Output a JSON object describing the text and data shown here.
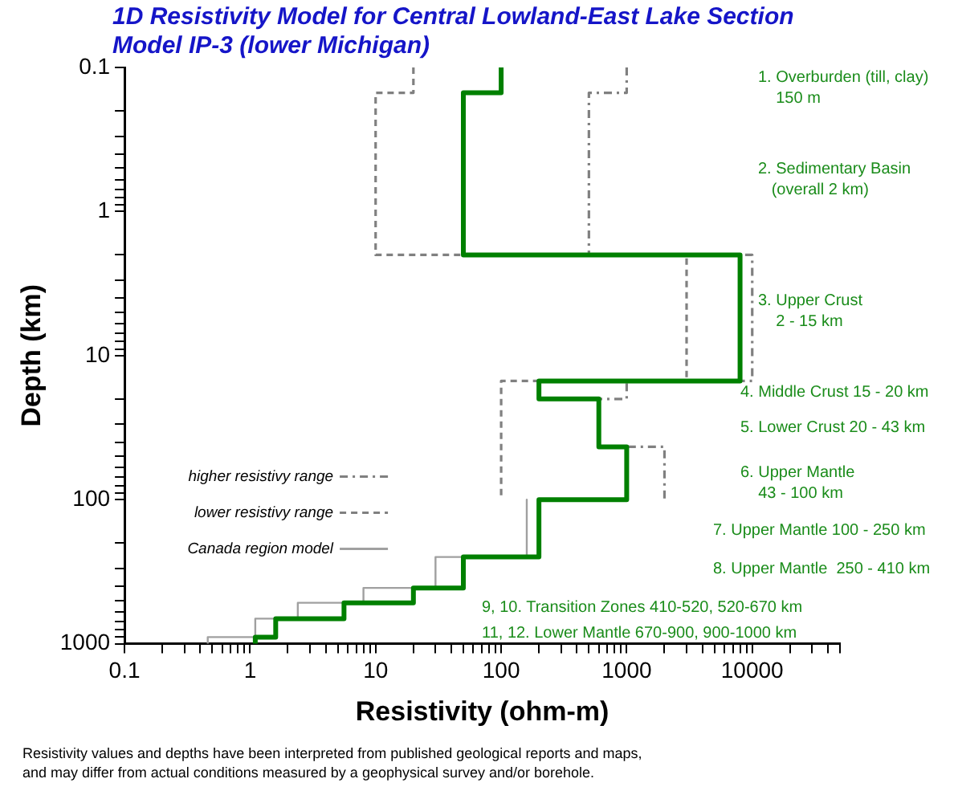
{
  "chart_data": {
    "type": "line",
    "title": "1D Resistivity Model for Central Lowland-East Lake Section",
    "subtitle": "Model IP-3 (lower Michigan)",
    "xlabel": "Resistivity (ohm-m)",
    "ylabel": "Depth (km)",
    "log": "xy",
    "xlim": [
      0.1,
      50000
    ],
    "ylim": [
      1000,
      0.1
    ],
    "xticks": [
      0.1,
      {
        "value": 0.2,
        "label": null
      },
      {
        "value": 0.3,
        "label": null
      },
      {
        "value": 0.4,
        "label": null
      },
      {
        "value": 0.5,
        "label": null
      },
      {
        "value": 0.6,
        "label": null
      },
      {
        "value": 0.7,
        "label": null
      },
      {
        "value": 0.8,
        "label": null
      },
      {
        "value": 0.9,
        "label": null
      },
      1,
      {
        "value": 2,
        "label": null
      },
      {
        "value": 3,
        "label": null
      },
      {
        "value": 4,
        "label": null
      },
      {
        "value": 5,
        "label": null
      },
      {
        "value": 6,
        "label": null
      },
      {
        "value": 7,
        "label": null
      },
      {
        "value": 8,
        "label": null
      },
      {
        "value": 9,
        "label": null
      },
      10,
      {
        "value": 20,
        "label": null
      },
      {
        "value": 30,
        "label": null
      },
      {
        "value": 40,
        "label": null
      },
      {
        "value": 50,
        "label": null
      },
      {
        "value": 60,
        "label": null
      },
      {
        "value": 70,
        "label": null
      },
      {
        "value": 80,
        "label": null
      },
      {
        "value": 90,
        "label": null
      },
      100,
      {
        "value": 200,
        "label": null
      },
      {
        "value": 300,
        "label": null
      },
      {
        "value": 400,
        "label": null
      },
      {
        "value": 500,
        "label": null
      },
      {
        "value": 600,
        "label": null
      },
      {
        "value": 700,
        "label": null
      },
      {
        "value": 800,
        "label": null
      },
      {
        "value": 900,
        "label": null
      },
      1000,
      {
        "value": 2000,
        "label": null
      },
      {
        "value": 3000,
        "label": null
      },
      {
        "value": 4000,
        "label": null
      },
      {
        "value": 5000,
        "label": null
      },
      {
        "value": 6000,
        "label": null
      },
      {
        "value": 7000,
        "label": null
      },
      {
        "value": 8000,
        "label": null
      },
      {
        "value": 9000,
        "label": null
      },
      10000,
      {
        "value": 20000,
        "label": null
      },
      {
        "value": 30000,
        "label": null
      },
      {
        "value": 40000,
        "label": null
      },
      {
        "value": 50000,
        "label": null
      }
    ],
    "yticks": [
      0.1,
      {
        "value": 0.2,
        "label": null
      },
      {
        "value": 0.3,
        "label": null
      },
      {
        "value": 0.4,
        "label": null
      },
      {
        "value": 0.5,
        "label": null
      },
      {
        "value": 0.6,
        "label": null
      },
      {
        "value": 0.7,
        "label": null
      },
      {
        "value": 0.8,
        "label": null
      },
      {
        "value": 0.9,
        "label": null
      },
      1,
      {
        "value": 2,
        "label": null
      },
      {
        "value": 3,
        "label": null
      },
      {
        "value": 4,
        "label": null
      },
      {
        "value": 5,
        "label": null
      },
      {
        "value": 6,
        "label": null
      },
      {
        "value": 7,
        "label": null
      },
      {
        "value": 8,
        "label": null
      },
      {
        "value": 9,
        "label": null
      },
      10,
      {
        "value": 20,
        "label": null
      },
      {
        "value": 30,
        "label": null
      },
      {
        "value": 40,
        "label": null
      },
      {
        "value": 50,
        "label": null
      },
      {
        "value": 60,
        "label": null
      },
      {
        "value": 70,
        "label": null
      },
      {
        "value": 80,
        "label": null
      },
      {
        "value": 90,
        "label": null
      },
      100,
      {
        "value": 200,
        "label": null
      },
      {
        "value": 300,
        "label": null
      },
      {
        "value": 400,
        "label": null
      },
      {
        "value": 500,
        "label": null
      },
      {
        "value": 600,
        "label": null
      },
      {
        "value": 700,
        "label": null
      },
      {
        "value": 800,
        "label": null
      },
      {
        "value": 900,
        "label": null
      },
      1000
    ],
    "grid": false,
    "legend": "left",
    "marker": "none",
    "series": [
      {
        "color": "#008000",
        "line_style": "solid",
        "x": [
          100,
          100,
          50,
          50,
          8000,
          8000,
          200,
          200,
          600,
          600,
          1000,
          1000,
          200,
          200,
          50,
          50,
          20,
          20,
          5.6,
          5.6,
          1.6,
          1.6,
          1.1,
          1.1
        ],
        "values": [
          0.1,
          0.15,
          0.15,
          2,
          2,
          15,
          15,
          20,
          20,
          43,
          43,
          100,
          100,
          250,
          250,
          410,
          410,
          520,
          520,
          670,
          670,
          900,
          900,
          1000
        ]
      },
      {
        "name": "higher resistivy range",
        "color": "#808080",
        "line_style": "dotted",
        "x": [
          1000,
          1000,
          500,
          500,
          10000,
          10000,
          1000,
          1000,
          600,
          600,
          2000,
          2000
        ],
        "values": [
          0.1,
          0.15,
          0.15,
          2,
          2,
          15,
          15,
          20,
          20,
          43,
          43,
          100
        ]
      },
      {
        "name": "lower resistivy range",
        "color": "#808080",
        "line_style": "dashed",
        "x": [
          20,
          20,
          10,
          10,
          3000,
          3000,
          100,
          100
        ],
        "values": [
          0.1,
          0.15,
          0.15,
          2,
          2,
          15,
          15,
          100
        ]
      },
      {
        "name": "Canada region model",
        "color": "#a0a0a0",
        "line_style": "solid",
        "x": [
          160,
          160,
          30,
          30,
          8,
          8,
          2.4,
          2.4,
          1.1,
          1.1,
          0.46,
          0.46
        ],
        "values": [
          100,
          250,
          250,
          410,
          410,
          520,
          520,
          670,
          670,
          900,
          900,
          1000
        ]
      }
    ],
    "annotations": [
      "1. Overburden (till, clay)\n    150 m",
      "2. Sedimentary Basin\n   (overall 2 km)",
      "3. Upper Crust\n    2 - 15 km",
      "4. Middle Crust 15 - 20 km",
      "5. Lower Crust 20 - 43 km",
      "6. Upper Mantle\n    43 - 100 km",
      "7. Upper Mantle 100 - 250 km",
      "8. Upper Mantle  250 - 410 km",
      "9, 10. Transition Zones 410-520, 520-670 km",
      "11, 12. Lower Mantle 670-900, 900-1000 km",
      "Resistivity values and depths have been interpreted from published geological reports and maps, and may differ from actual conditions measured by a geophysical survey and/or borehole."
    ]
  }
}
